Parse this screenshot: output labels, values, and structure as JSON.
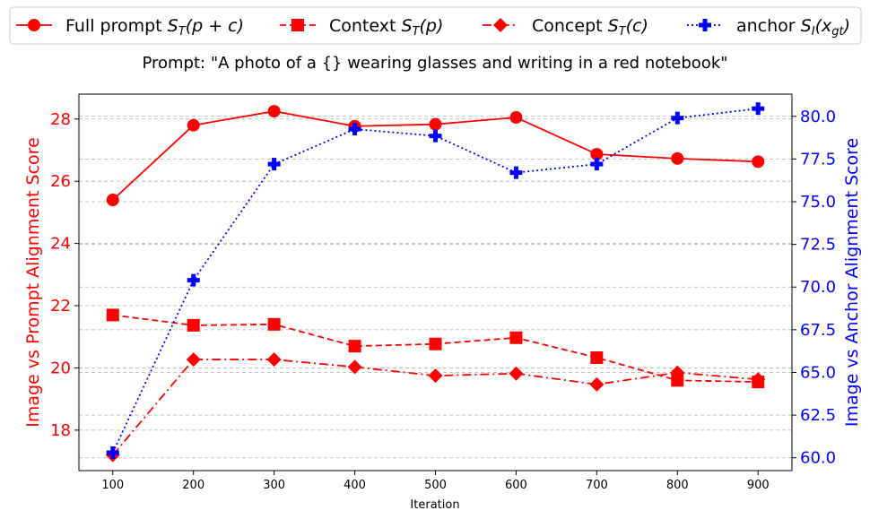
{
  "chart_data": {
    "type": "line",
    "title": "Prompt: \"A photo of a {} wearing glasses and writing in a red notebook\"",
    "xlabel": "Iteration",
    "ylabel_left": "Image vs Prompt Alignment Score",
    "ylabel_right": "Image vs Anchor Alignment Score",
    "x": [
      100,
      200,
      300,
      400,
      500,
      600,
      700,
      800,
      900
    ],
    "xlim": [
      58,
      942
    ],
    "ylim_left": [
      16.7,
      28.8
    ],
    "ylim_right": [
      59.25,
      81.3
    ],
    "xticks": [
      "100",
      "200",
      "300",
      "400",
      "500",
      "600",
      "700",
      "800",
      "900"
    ],
    "yticks_left": [
      "18",
      "20",
      "22",
      "24",
      "26",
      "28"
    ],
    "yticks_right": [
      "60.0",
      "62.5",
      "65.0",
      "67.5",
      "70.0",
      "72.5",
      "75.0",
      "77.5",
      "80.0"
    ],
    "grid": "horizontal dashed",
    "legend_position": "top, outside",
    "legend": [
      {
        "label": "Full prompt ",
        "math": "S",
        "sub": "T",
        "arg": "(p + c)"
      },
      {
        "label": "Context ",
        "math": "S",
        "sub": "T",
        "arg": "(p)"
      },
      {
        "label": "Concept ",
        "math": "S",
        "sub": "T",
        "arg": "(c)"
      },
      {
        "label": "anchor ",
        "math": "S",
        "sub": "I",
        "arg": "(x",
        "argsub": "gt",
        "argend": ")"
      }
    ],
    "series": [
      {
        "key": "full",
        "axis": "left",
        "color": "#ff0000",
        "dash": "",
        "marker": "circle",
        "values": [
          25.4,
          27.8,
          28.25,
          27.77,
          27.83,
          28.05,
          26.87,
          26.73,
          26.63
        ]
      },
      {
        "key": "context",
        "axis": "left",
        "color": "#ff0000",
        "dash": "7,4",
        "marker": "square",
        "values": [
          21.7,
          21.37,
          21.4,
          20.7,
          20.77,
          20.97,
          20.33,
          19.6,
          19.55
        ]
      },
      {
        "key": "concept",
        "axis": "left",
        "color": "#ff0000",
        "dash": "10,4,2,4",
        "marker": "diamond",
        "values": [
          17.2,
          20.27,
          20.27,
          20.03,
          19.75,
          19.82,
          19.47,
          19.85,
          19.63
        ]
      },
      {
        "key": "anchor",
        "axis": "right",
        "color": "#0000ff",
        "dash": "2,3",
        "marker": "plus",
        "values": [
          60.3,
          70.4,
          77.2,
          79.25,
          78.85,
          76.7,
          77.2,
          79.9,
          80.45
        ]
      }
    ]
  },
  "colors": {
    "left_axis": "#ff0000",
    "right_axis": "#0000ff"
  }
}
